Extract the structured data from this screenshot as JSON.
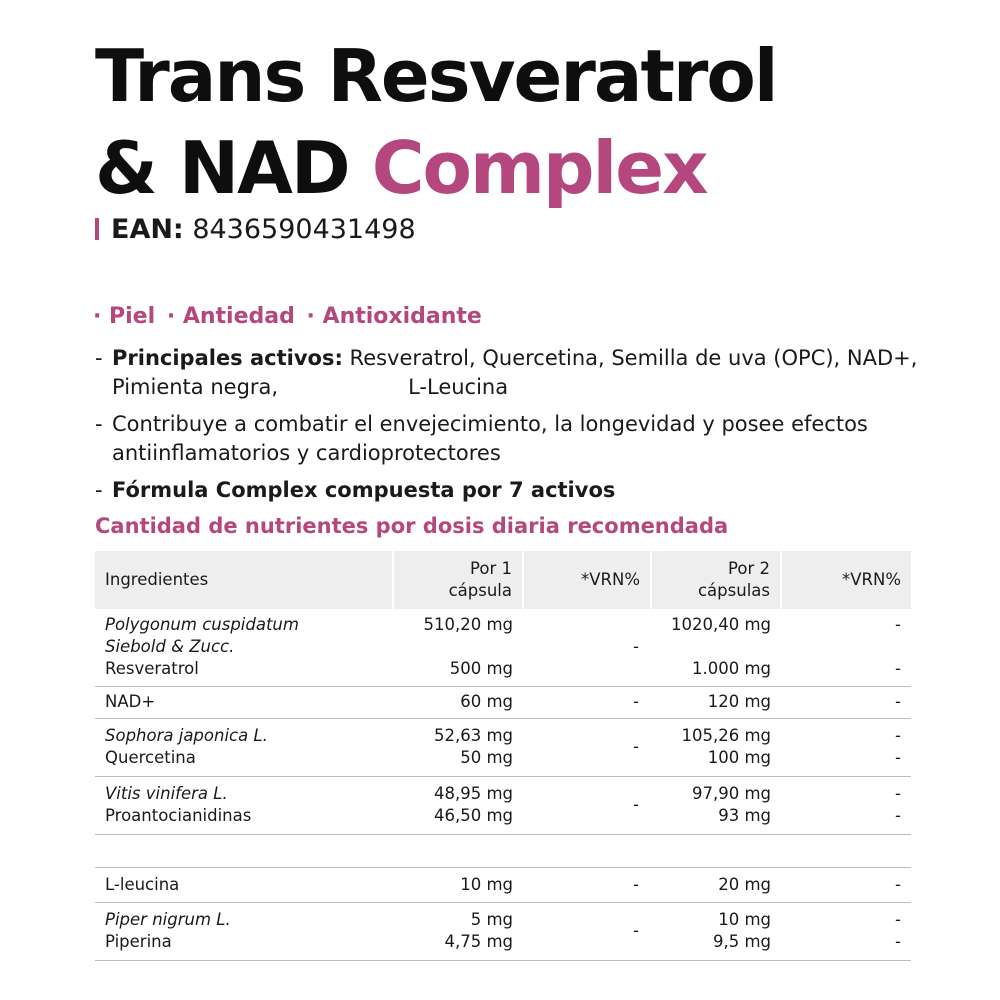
{
  "title": {
    "line1": "Trans Resveratrol",
    "line2_a": "& NAD",
    "line2_b": "Complex"
  },
  "ean": {
    "label": "EAN:",
    "value": "8436590431498"
  },
  "tags": [
    "· Piel",
    "· Antiedad",
    "· Antioxidante"
  ],
  "bullets": {
    "b1_bold": "Principales activos:",
    "b1_text": " Resveratrol, Quercetina, Semilla de uva (OPC), NAD+,",
    "b1_line2a": "Pimienta negra,",
    "b1_line2b": "L-Leucina",
    "b2_line1": "Contribuye a combatir el envejecimiento, la longevidad  y posee efectos",
    "b2_line2": "antiinflamatorios y cardioprotectores",
    "b3_bold": "Fórmula Complex compuesta por 7 activos",
    "dash": "-"
  },
  "subheading": "Cantidad de nutrientes por dosis diaria recomendada",
  "table": {
    "headers": {
      "ingredients": "Ingredientes",
      "per1_a": "Por 1",
      "per1_b": "cápsula",
      "vrn1": "*VRN%",
      "per2_a": "Por 2",
      "per2_b": "cápsulas",
      "vrn2": "*VRN%"
    },
    "rows": {
      "r1": {
        "name_a": "Polygonum cuspidatum",
        "name_b": "Siebold & Zucc.",
        "name_c": "Resveratrol",
        "p1_a": "510,20 mg",
        "p1_c": "500 mg",
        "vrn1": "-",
        "p2_a": "1020,40 mg",
        "p2_c": "1.000 mg",
        "vrn2_a": "-",
        "vrn2_c": "-"
      },
      "r2": {
        "name": "NAD+",
        "p1": "60 mg",
        "vrn1": "-",
        "p2": "120 mg",
        "vrn2": "-"
      },
      "r3": {
        "name_a": "Sophora japonica L.",
        "name_b": "Quercetina",
        "p1_a": "52,63 mg",
        "p1_b": "50 mg",
        "vrn1": "-",
        "p2_a": "105,26 mg",
        "p2_b": "100 mg",
        "vrn2_a": "-",
        "vrn2_b": "-"
      },
      "r4": {
        "name_a": "Vitis vinifera L.",
        "name_b": "Proantocianidinas",
        "p1_a": "48,95 mg",
        "p1_b": "46,50 mg",
        "vrn1": "-",
        "p2_a": "97,90 mg",
        "p2_b": "93 mg",
        "vrn2_a": "-",
        "vrn2_b": "-"
      },
      "r6": {
        "name": "L-leucina",
        "p1": "10 mg",
        "vrn1": "-",
        "p2": "20 mg",
        "vrn2": "-"
      },
      "r7": {
        "name_a": "Piper nigrum L.",
        "name_b": "Piperina",
        "p1_a": "5 mg",
        "p1_b": "4,75 mg",
        "vrn1": "-",
        "p2_a": "10 mg",
        "p2_b": "9,5 mg",
        "vrn2_a": "-",
        "vrn2_b": "-"
      }
    }
  },
  "colors": {
    "accent": "#b4477d",
    "header_bg": "#eeeeee",
    "text": "#1a1a1a"
  }
}
